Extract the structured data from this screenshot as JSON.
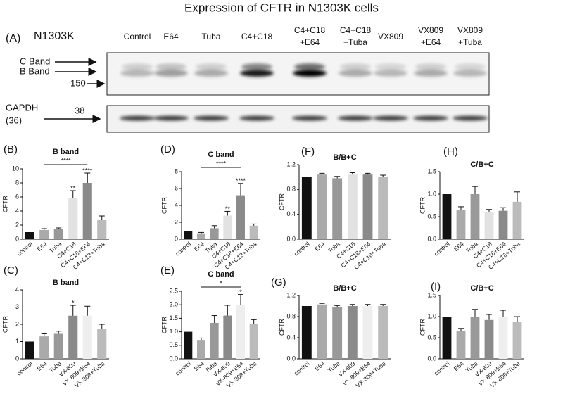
{
  "title": "Expression of CFTR in N1303K cells",
  "blot": {
    "panel": "(A)",
    "cell_line": "N1303K",
    "lanes": [
      [
        "Control"
      ],
      [
        "E64"
      ],
      [
        "Tuba"
      ],
      [
        "C4+C18"
      ],
      [
        "C4+C18",
        "+E64"
      ],
      [
        "C4+C18",
        "+Tuba"
      ],
      [
        "VX809"
      ],
      [
        "VX809",
        "+E64"
      ],
      [
        "VX809",
        "+Tuba"
      ]
    ],
    "c_band": "C Band",
    "b_band": "B Band",
    "marker": "150",
    "gapdh": "GAPDH",
    "gapdh_size": "(36)",
    "gapdh_marker": "38"
  },
  "chart_data": [
    {
      "type": "bar",
      "panel": "(B)",
      "title": "B band",
      "ylabel": "CFTR",
      "categories": [
        "control",
        "E64",
        "Tuba",
        "C4+C18",
        "C4+C18+E64",
        "C4+C18+Tuba"
      ],
      "values": [
        1,
        1.3,
        1.4,
        5.9,
        8.0,
        2.7
      ],
      "errors": [
        null,
        0.2,
        0.2,
        1.0,
        1.4,
        0.6
      ],
      "stars": [
        null,
        null,
        null,
        "**",
        "****",
        null
      ],
      "bracket": {
        "from": "E64",
        "to": "C4+C18+E64",
        "label": "****"
      },
      "colors": [
        "#111111",
        "#aaaaaa",
        "#999999",
        "#e2e2e2",
        "#8a8a8a",
        "#bbbbbb"
      ],
      "ylim": [
        0,
        10
      ],
      "yticks": [
        0,
        2,
        4,
        6,
        8,
        10
      ]
    },
    {
      "type": "bar",
      "panel": "(D)",
      "title": "C band",
      "ylabel": "CFTR",
      "categories": [
        "control",
        "E64",
        "Tuba",
        "C4+C18",
        "C4+C18+E64",
        "C4+C18+Tuba"
      ],
      "values": [
        1,
        0.7,
        1.3,
        2.8,
        5.2,
        1.6
      ],
      "errors": [
        null,
        0.1,
        0.3,
        0.5,
        1.4,
        0.2
      ],
      "stars": [
        null,
        null,
        null,
        "**",
        "****",
        null
      ],
      "bracket": {
        "from": "E64",
        "to": "C4+C18+E64",
        "label": "****"
      },
      "colors": [
        "#111111",
        "#aaaaaa",
        "#999999",
        "#e2e2e2",
        "#8a8a8a",
        "#bbbbbb"
      ],
      "ylim": [
        0,
        8
      ],
      "yticks": [
        0,
        2,
        4,
        6,
        8
      ]
    },
    {
      "type": "bar",
      "panel": "(F)",
      "title": "B/B+C",
      "ylabel": "CFTR",
      "categories": [
        "control",
        "E64",
        "Tuba",
        "C4+C18",
        "C4+C18+E64",
        "C4+C18+Tuba"
      ],
      "values": [
        1.0,
        1.04,
        0.98,
        1.04,
        1.04,
        1.0
      ],
      "errors": [
        null,
        0.02,
        0.03,
        0.03,
        0.02,
        0.03
      ],
      "colors": [
        "#111111",
        "#aaaaaa",
        "#999999",
        "#e2e2e2",
        "#8a8a8a",
        "#bbbbbb"
      ],
      "ylim": [
        0,
        1.2
      ],
      "yticks": [
        {
          "value": 0,
          "label": "0.0"
        },
        0.4,
        0.8,
        1.2
      ]
    },
    {
      "type": "bar",
      "panel": "(H)",
      "title": "C/B+C",
      "ylabel": "CFTR",
      "categories": [
        "control",
        "E64",
        "Tuba",
        "C4+C18",
        "C4+C18+E64",
        "C4+C18+Tuba"
      ],
      "values": [
        1.0,
        0.65,
        1.0,
        0.6,
        0.63,
        0.83
      ],
      "errors": [
        null,
        0.07,
        0.17,
        0.06,
        0.07,
        0.22
      ],
      "colors": [
        "#111111",
        "#aaaaaa",
        "#999999",
        "#e2e2e2",
        "#8a8a8a",
        "#bbbbbb"
      ],
      "ylim": [
        0,
        1.5
      ],
      "yticks": [
        {
          "value": 0,
          "label": "0.0"
        },
        0.5,
        {
          "value": 1,
          "label": "1.0"
        },
        1.5
      ]
    },
    {
      "type": "bar",
      "panel": "(C)",
      "title": "B band",
      "ylabel": "CFTR",
      "categories": [
        "control",
        "E64",
        "Tuba",
        "VX-809",
        "VX-809+E64",
        "VX-809+Tuba"
      ],
      "values": [
        1,
        1.3,
        1.45,
        2.5,
        2.5,
        1.75
      ],
      "errors": [
        null,
        0.15,
        0.15,
        0.6,
        0.55,
        0.25
      ],
      "stars": [
        null,
        null,
        null,
        "*",
        null,
        null
      ],
      "colors": [
        "#111111",
        "#aaaaaa",
        "#999999",
        "#8a8a8a",
        "#eeeeee",
        "#bbbbbb"
      ],
      "ylim": [
        0,
        4
      ],
      "yticks": [
        0,
        1,
        2,
        3,
        4
      ]
    },
    {
      "type": "bar",
      "panel": "(E)",
      "title": "C band",
      "ylabel": "CFTR",
      "categories": [
        "control",
        "E64",
        "Tuba",
        "VX-809",
        "VX-809+E64",
        "VX-809+Tuba"
      ],
      "values": [
        1,
        0.7,
        1.33,
        1.6,
        2.0,
        1.3
      ],
      "errors": [
        null,
        0.07,
        0.27,
        0.38,
        0.38,
        0.15
      ],
      "stars": [
        null,
        null,
        null,
        null,
        "*",
        null
      ],
      "bracket": {
        "from": "E64",
        "to": "VX-809+E64",
        "label": "*"
      },
      "colors": [
        "#111111",
        "#aaaaaa",
        "#999999",
        "#8a8a8a",
        "#eeeeee",
        "#bbbbbb"
      ],
      "ylim": [
        0,
        2.5
      ],
      "yticks": [
        {
          "value": 0,
          "label": "0.0"
        },
        0.5,
        {
          "value": 1,
          "label": "1.0"
        },
        1.5,
        {
          "value": 2,
          "label": "2.0"
        },
        2.5
      ]
    },
    {
      "type": "bar",
      "panel": "(G)",
      "title": "B/B+C",
      "ylabel": "CFTR",
      "categories": [
        "control",
        "E64",
        "Tuba",
        "VX-809",
        "VX-809+E64",
        "VX-809+Tuba"
      ],
      "values": [
        1.0,
        1.03,
        0.98,
        1.0,
        1.0,
        1.0
      ],
      "errors": [
        null,
        0.02,
        0.03,
        0.03,
        0.03,
        0.03
      ],
      "colors": [
        "#111111",
        "#aaaaaa",
        "#999999",
        "#8a8a8a",
        "#eeeeee",
        "#bbbbbb"
      ],
      "ylim": [
        0,
        1.2
      ],
      "yticks": [
        {
          "value": 0,
          "label": "0.0"
        },
        0.4,
        0.8,
        1.2
      ]
    },
    {
      "type": "bar",
      "panel": "(I)",
      "title": "C/B+C",
      "ylabel": "CFTR",
      "categories": [
        "control",
        "E64",
        "Tuba",
        "VX-809",
        "VX-809+E64",
        "VX-809+Tuba"
      ],
      "values": [
        1.0,
        0.65,
        1.0,
        0.92,
        1.0,
        0.88
      ],
      "errors": [
        null,
        0.07,
        0.17,
        0.13,
        0.15,
        0.12
      ],
      "colors": [
        "#111111",
        "#aaaaaa",
        "#999999",
        "#8a8a8a",
        "#eeeeee",
        "#bbbbbb"
      ],
      "ylim": [
        0,
        1.5
      ],
      "yticks": [
        {
          "value": 0,
          "label": "0.0"
        },
        0.5,
        {
          "value": 1,
          "label": "1.0"
        },
        1.5
      ]
    }
  ]
}
